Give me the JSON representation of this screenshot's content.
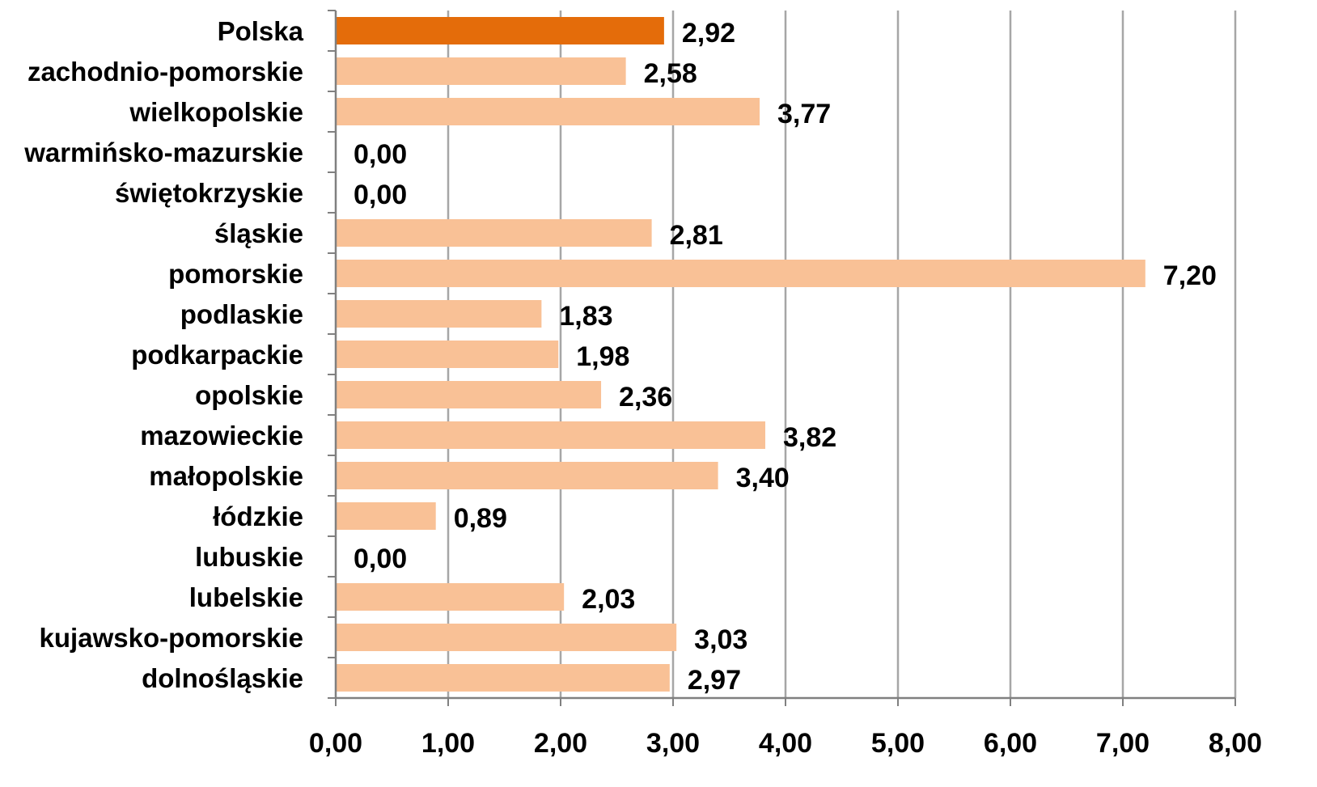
{
  "chart_data": {
    "type": "bar",
    "orientation": "horizontal",
    "categories": [
      "Polska",
      "zachodnio-pomorskie",
      "wielkopolskie",
      "warmińsko-mazurskie",
      "świętokrzyskie",
      "śląskie",
      "pomorskie",
      "podlaskie",
      "podkarpackie",
      "opolskie",
      "mazowieckie",
      "małopolskie",
      "łódzkie",
      "lubuskie",
      "lubelskie",
      "kujawsko-pomorskie",
      "dolnośląskie"
    ],
    "values": [
      2.92,
      2.58,
      3.77,
      0.0,
      0.0,
      2.81,
      7.2,
      1.83,
      1.98,
      2.36,
      3.82,
      3.4,
      0.89,
      0.0,
      2.03,
      3.03,
      2.97
    ],
    "value_labels": [
      "2,92",
      "2,58",
      "3,77",
      "0,00",
      "0,00",
      "2,81",
      "7,20",
      "1,83",
      "1,98",
      "2,36",
      "3,82",
      "3,40",
      "0,89",
      "0,00",
      "2,03",
      "3,03",
      "2,97"
    ],
    "highlight_category": "Polska",
    "x_ticks": [
      "0,00",
      "1,00",
      "2,00",
      "3,00",
      "4,00",
      "5,00",
      "6,00",
      "7,00",
      "8,00"
    ],
    "xlim": [
      0,
      8
    ],
    "grid": "vertical",
    "legend": "none",
    "colors": {
      "bar": "#f9c196",
      "highlight_bar": "#e46c0a",
      "grid": "#a6a6a6",
      "axis": "#808080"
    },
    "title": "",
    "xlabel": "",
    "ylabel": ""
  }
}
